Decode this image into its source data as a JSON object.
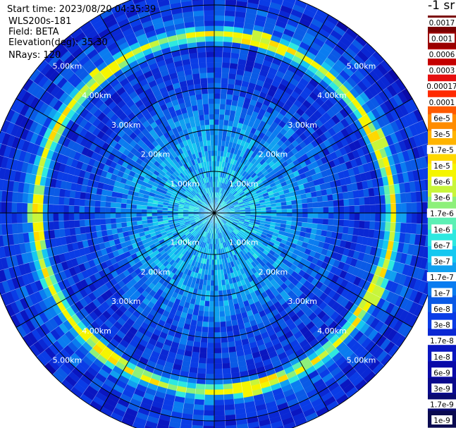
{
  "info": {
    "start_time": "Start time: 2023/08/20 04:35:39",
    "instrument": "WLS200s-181",
    "field": "Field: BETA",
    "elevation": "Elevation(deg): 35.30",
    "nrays": "NRays: 120"
  },
  "colorbar": {
    "unit": "-1 sr",
    "ticks": [
      "0.0017",
      "0.001",
      "0.0006",
      "0.0003",
      "0.00017",
      "0.0001",
      "6e-5",
      "3e-5",
      "1.7e-5",
      "1e-5",
      "6e-6",
      "3e-6",
      "1.7e-6",
      "1e-6",
      "6e-7",
      "3e-7",
      "1.7e-7",
      "1e-7",
      "6e-8",
      "3e-8",
      "1.7e-8",
      "1e-8",
      "6e-9",
      "3e-9",
      "1.7e-9",
      "1e-9"
    ],
    "colors": [
      "#7a0000",
      "#9a0000",
      "#c40000",
      "#e61010",
      "#ff2a00",
      "#ff5a00",
      "#ff8c00",
      "#ffb400",
      "#ffd800",
      "#f5f500",
      "#c8f53a",
      "#8df07a",
      "#5cf0b4",
      "#2de8e0",
      "#15c8f0",
      "#10a0f0",
      "#0a7cf0",
      "#0a5ae6",
      "#0a3ce6",
      "#0a28d4",
      "#0a16c0",
      "#0a0aa8",
      "#0a0a8c",
      "#0a0a70",
      "#0a0a50"
    ]
  },
  "chart_data": {
    "type": "heatmap",
    "subtype": "polar-ppi",
    "range_max_km": 5.5,
    "range_rings_km": [
      1,
      2,
      3,
      4,
      5
    ],
    "ring_labels": [
      "1.00km",
      "2.00km",
      "3.00km",
      "4.00km",
      "5.00km"
    ],
    "spoke_count": 12,
    "rays": 120,
    "profile": [
      {
        "r_km": 0.0,
        "value": 3e-07
      },
      {
        "r_km": 0.5,
        "value": 3e-07
      },
      {
        "r_km": 1.0,
        "value": 2.5e-07
      },
      {
        "r_km": 1.5,
        "value": 2e-07
      },
      {
        "r_km": 2.0,
        "value": 1.5e-07
      },
      {
        "r_km": 2.5,
        "value": 8e-08
      },
      {
        "r_km": 3.0,
        "value": 4e-08
      },
      {
        "r_km": 3.5,
        "value": 3e-08
      },
      {
        "r_km": 4.0,
        "value": 3e-08
      },
      {
        "r_km": 4.3,
        "value": 6e-06
      },
      {
        "r_km": 4.5,
        "value": 8e-08
      },
      {
        "r_km": 5.0,
        "value": 3e-08
      },
      {
        "r_km": 5.5,
        "value": 2e-08
      }
    ],
    "enhanced_ring": {
      "r_km": 4.3,
      "value": 6e-06
    }
  }
}
